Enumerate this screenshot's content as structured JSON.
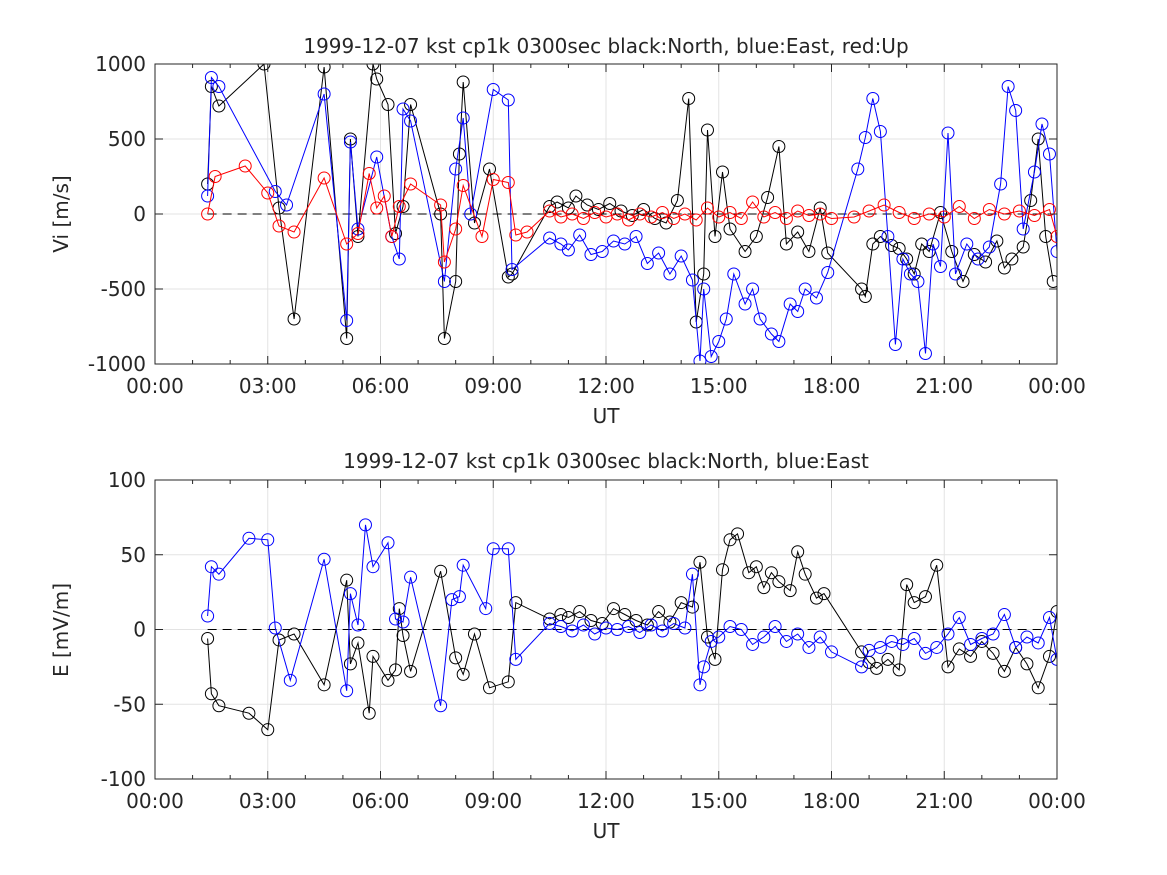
{
  "chart_data": [
    {
      "type": "scatter",
      "title": "1999-12-07 kst cp1k 0300sec black:North, blue:East, red:Up",
      "xlabel": "UT",
      "ylabel": "Vi [m/s]",
      "xlim": [
        0,
        24
      ],
      "ylim": [
        -1000,
        1000
      ],
      "xticks": [
        "00:00",
        "03:00",
        "06:00",
        "09:00",
        "12:00",
        "15:00",
        "18:00",
        "21:00",
        "00:00"
      ],
      "yticks": [
        -1000,
        -500,
        0,
        500,
        1000
      ],
      "grid": true,
      "reference_line": {
        "y": 0,
        "style": "dashed"
      },
      "series": [
        {
          "name": "North",
          "color": "#000000",
          "x": [
            1.4,
            1.5,
            1.7,
            2.9,
            3.3,
            3.7,
            4.5,
            5.1,
            5.2,
            5.4,
            5.8,
            5.9,
            6.2,
            6.4,
            6.6,
            6.8,
            7.6,
            7.7,
            8.0,
            8.1,
            8.2,
            8.5,
            8.9,
            9.4,
            9.5,
            10.5,
            10.7,
            11.0,
            11.2,
            11.5,
            11.8,
            12.1,
            12.4,
            12.7,
            13.0,
            13.3,
            13.6,
            13.9,
            14.2,
            14.4,
            14.6,
            14.7,
            14.9,
            15.1,
            15.3,
            15.7,
            16.0,
            16.3,
            16.6,
            16.8,
            17.1,
            17.4,
            17.7,
            17.9,
            18.8,
            18.9,
            19.1,
            19.3,
            19.6,
            19.8,
            20.0,
            20.2,
            20.4,
            20.6,
            20.9,
            21.2,
            21.5,
            21.8,
            22.1,
            22.4,
            22.6,
            22.8,
            23.1,
            23.3,
            23.5,
            23.7,
            23.9
          ],
          "y": [
            200,
            850,
            720,
            1000,
            40,
            -700,
            980,
            -830,
            500,
            -150,
            1000,
            900,
            730,
            -130,
            50,
            730,
            0,
            -830,
            -450,
            400,
            880,
            -60,
            300,
            -420,
            -400,
            50,
            80,
            40,
            120,
            60,
            30,
            70,
            20,
            -10,
            30,
            -30,
            -60,
            90,
            770,
            -720,
            -400,
            560,
            -150,
            280,
            -100,
            -250,
            -150,
            110,
            450,
            -200,
            -120,
            -250,
            40,
            -260,
            -500,
            -550,
            -200,
            -150,
            -210,
            -230,
            -300,
            -400,
            -200,
            -250,
            10,
            -250,
            -450,
            -270,
            -320,
            -180,
            -360,
            -300,
            -220,
            90,
            500,
            -150,
            -450
          ]
        },
        {
          "name": "East",
          "color": "#0000ff",
          "x": [
            1.4,
            1.5,
            1.7,
            3.2,
            3.5,
            4.5,
            5.1,
            5.2,
            5.4,
            5.9,
            6.3,
            6.5,
            6.6,
            6.8,
            7.7,
            8.0,
            8.2,
            8.4,
            9.0,
            9.4,
            9.5,
            10.5,
            10.8,
            11.0,
            11.3,
            11.6,
            11.9,
            12.2,
            12.5,
            12.8,
            13.1,
            13.4,
            13.7,
            14.0,
            14.3,
            14.5,
            14.6,
            14.8,
            15.0,
            15.2,
            15.4,
            15.7,
            15.9,
            16.1,
            16.4,
            16.6,
            16.9,
            17.1,
            17.3,
            17.6,
            17.9,
            18.7,
            18.9,
            19.1,
            19.3,
            19.5,
            19.7,
            19.9,
            20.1,
            20.3,
            20.5,
            20.7,
            20.9,
            21.1,
            21.3,
            21.6,
            21.9,
            22.2,
            22.5,
            22.7,
            22.9,
            23.1,
            23.4,
            23.6,
            23.8,
            24.0
          ],
          "y": [
            120,
            910,
            850,
            150,
            60,
            800,
            -710,
            480,
            -100,
            380,
            -150,
            -300,
            700,
            620,
            -450,
            300,
            640,
            0,
            830,
            760,
            -370,
            -160,
            -200,
            -240,
            -140,
            -270,
            -250,
            -180,
            -200,
            -150,
            -330,
            -260,
            -400,
            -280,
            -440,
            -980,
            -500,
            -950,
            -850,
            -700,
            -400,
            -600,
            -500,
            -700,
            -800,
            -850,
            -600,
            -650,
            -500,
            -560,
            -390,
            300,
            510,
            770,
            550,
            -150,
            -870,
            -300,
            -400,
            -450,
            -930,
            -200,
            -350,
            540,
            -400,
            -200,
            -300,
            -220,
            200,
            850,
            690,
            -100,
            280,
            600,
            400,
            -250
          ]
        },
        {
          "name": "Up",
          "color": "#ff0000",
          "x": [
            1.4,
            1.6,
            2.4,
            3.0,
            3.3,
            3.7,
            4.5,
            5.1,
            5.4,
            5.7,
            5.9,
            6.1,
            6.3,
            6.5,
            6.8,
            7.6,
            7.7,
            8.0,
            8.2,
            8.7,
            9.0,
            9.4,
            9.6,
            9.9,
            10.5,
            10.8,
            11.1,
            11.4,
            11.7,
            12.0,
            12.3,
            12.6,
            12.9,
            13.2,
            13.5,
            13.8,
            14.1,
            14.4,
            14.7,
            15.0,
            15.3,
            15.6,
            15.9,
            16.2,
            16.5,
            16.8,
            17.1,
            17.4,
            17.7,
            18.0,
            18.6,
            19.0,
            19.4,
            19.8,
            20.2,
            20.6,
            21.0,
            21.4,
            21.8,
            22.2,
            22.6,
            23.0,
            23.4,
            23.8,
            24.0
          ],
          "y": [
            0,
            250,
            320,
            140,
            -80,
            -120,
            240,
            -200,
            -130,
            270,
            40,
            120,
            -150,
            50,
            200,
            60,
            -320,
            -100,
            190,
            -150,
            230,
            210,
            -140,
            -120,
            20,
            -20,
            0,
            -30,
            10,
            -20,
            0,
            -40,
            0,
            -20,
            10,
            -30,
            0,
            -40,
            40,
            -20,
            10,
            -30,
            80,
            -20,
            10,
            -30,
            20,
            -10,
            0,
            -30,
            -20,
            20,
            60,
            10,
            -30,
            0,
            -20,
            50,
            -30,
            30,
            0,
            20,
            -10,
            30,
            -150
          ]
        }
      ]
    },
    {
      "type": "scatter",
      "title": "1999-12-07 kst cp1k 0300sec black:North, blue:East",
      "xlabel": "UT",
      "ylabel": "E [mV/m]",
      "xlim": [
        0,
        24
      ],
      "ylim": [
        -100,
        100
      ],
      "xticks": [
        "00:00",
        "03:00",
        "06:00",
        "09:00",
        "12:00",
        "15:00",
        "18:00",
        "21:00",
        "00:00"
      ],
      "yticks": [
        -100,
        -50,
        0,
        50,
        100
      ],
      "grid": true,
      "reference_line": {
        "y": 0,
        "style": "dashed"
      },
      "series": [
        {
          "name": "North",
          "color": "#000000",
          "x": [
            1.4,
            1.5,
            1.7,
            2.5,
            3.0,
            3.3,
            3.7,
            4.5,
            5.1,
            5.2,
            5.4,
            5.7,
            5.8,
            6.2,
            6.4,
            6.5,
            6.6,
            6.8,
            7.6,
            8.0,
            8.2,
            8.5,
            8.9,
            9.4,
            9.6,
            10.5,
            10.8,
            11.0,
            11.3,
            11.6,
            11.9,
            12.2,
            12.5,
            12.8,
            13.1,
            13.4,
            13.7,
            14.0,
            14.3,
            14.5,
            14.7,
            14.9,
            15.1,
            15.3,
            15.5,
            15.8,
            16.0,
            16.2,
            16.4,
            16.6,
            16.9,
            17.1,
            17.3,
            17.6,
            17.8,
            18.8,
            19.0,
            19.2,
            19.5,
            19.8,
            20.0,
            20.2,
            20.5,
            20.8,
            21.1,
            21.4,
            21.7,
            22.0,
            22.3,
            22.6,
            22.9,
            23.2,
            23.5,
            23.8,
            24.0
          ],
          "y": [
            -6,
            -43,
            -51,
            -56,
            -67,
            -7,
            -3,
            -37,
            33,
            -23,
            -9,
            -56,
            -18,
            -34,
            -27,
            14,
            -4,
            -28,
            39,
            -19,
            -30,
            -3,
            -39,
            -35,
            18,
            7,
            10,
            8,
            12,
            6,
            4,
            14,
            10,
            6,
            3,
            12,
            5,
            18,
            15,
            45,
            -5,
            -20,
            40,
            60,
            64,
            38,
            42,
            28,
            38,
            32,
            26,
            52,
            37,
            21,
            24,
            -15,
            -22,
            -26,
            -20,
            -27,
            30,
            18,
            22,
            43,
            -25,
            -13,
            -18,
            -8,
            -16,
            -28,
            -12,
            -23,
            -39,
            -18,
            12
          ]
        },
        {
          "name": "East",
          "color": "#0000ff",
          "x": [
            1.4,
            1.5,
            1.7,
            2.5,
            3.0,
            3.2,
            3.6,
            4.5,
            5.1,
            5.2,
            5.4,
            5.6,
            5.8,
            6.2,
            6.4,
            6.6,
            6.8,
            7.6,
            7.9,
            8.1,
            8.2,
            8.8,
            9.0,
            9.4,
            9.6,
            10.5,
            10.8,
            11.1,
            11.4,
            11.7,
            12.0,
            12.3,
            12.6,
            12.9,
            13.2,
            13.5,
            13.8,
            14.1,
            14.3,
            14.5,
            14.6,
            14.8,
            15.0,
            15.3,
            15.6,
            15.9,
            16.2,
            16.5,
            16.8,
            17.1,
            17.4,
            17.7,
            18.0,
            18.8,
            19.0,
            19.3,
            19.6,
            19.9,
            20.2,
            20.5,
            20.8,
            21.1,
            21.4,
            21.7,
            22.0,
            22.3,
            22.6,
            22.9,
            23.2,
            23.5,
            23.8,
            24.0
          ],
          "y": [
            9,
            42,
            37,
            61,
            60,
            1,
            -34,
            47,
            -41,
            24,
            3,
            70,
            42,
            58,
            7,
            5,
            35,
            -51,
            20,
            22,
            43,
            14,
            54,
            54,
            -20,
            4,
            2,
            -1,
            3,
            -3,
            1,
            0,
            2,
            -2,
            3,
            -1,
            4,
            1,
            37,
            -37,
            -25,
            -8,
            -5,
            2,
            0,
            -10,
            -5,
            2,
            -8,
            -3,
            -12,
            -5,
            -15,
            -25,
            -14,
            -12,
            -8,
            -10,
            -6,
            -16,
            -12,
            -3,
            8,
            -10,
            -6,
            -3,
            10,
            -12,
            -5,
            -9,
            8,
            -20
          ]
        }
      ]
    }
  ]
}
